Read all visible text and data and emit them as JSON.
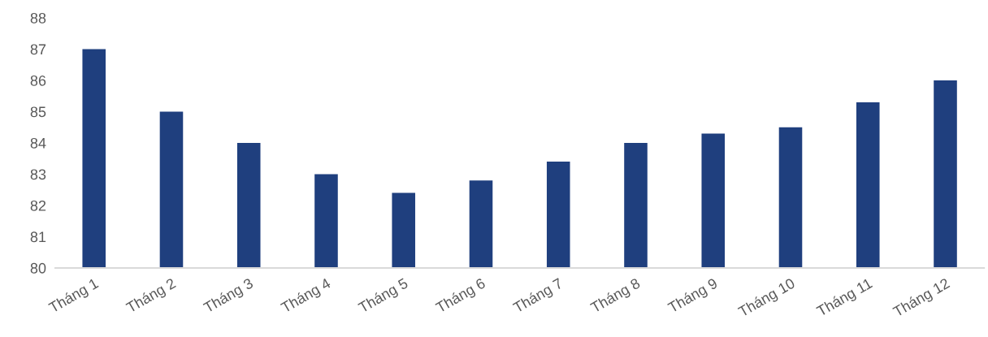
{
  "chart_data": {
    "type": "bar",
    "categories": [
      "Tháng 1",
      "Tháng 2",
      "Tháng 3",
      "Tháng 4",
      "Tháng 5",
      "Tháng 6",
      "Tháng 7",
      "Tháng 8",
      "Tháng 9",
      "Tháng 10",
      "Tháng 11",
      "Tháng 12"
    ],
    "values": [
      87,
      85,
      84,
      83,
      82.4,
      82.8,
      83.4,
      84,
      84.3,
      84.5,
      85.3,
      86
    ],
    "color": "#1f3f7e",
    "ylim": [
      80,
      88
    ],
    "yticks": [
      80,
      81,
      82,
      83,
      84,
      85,
      86,
      87,
      88
    ],
    "grid": false
  }
}
